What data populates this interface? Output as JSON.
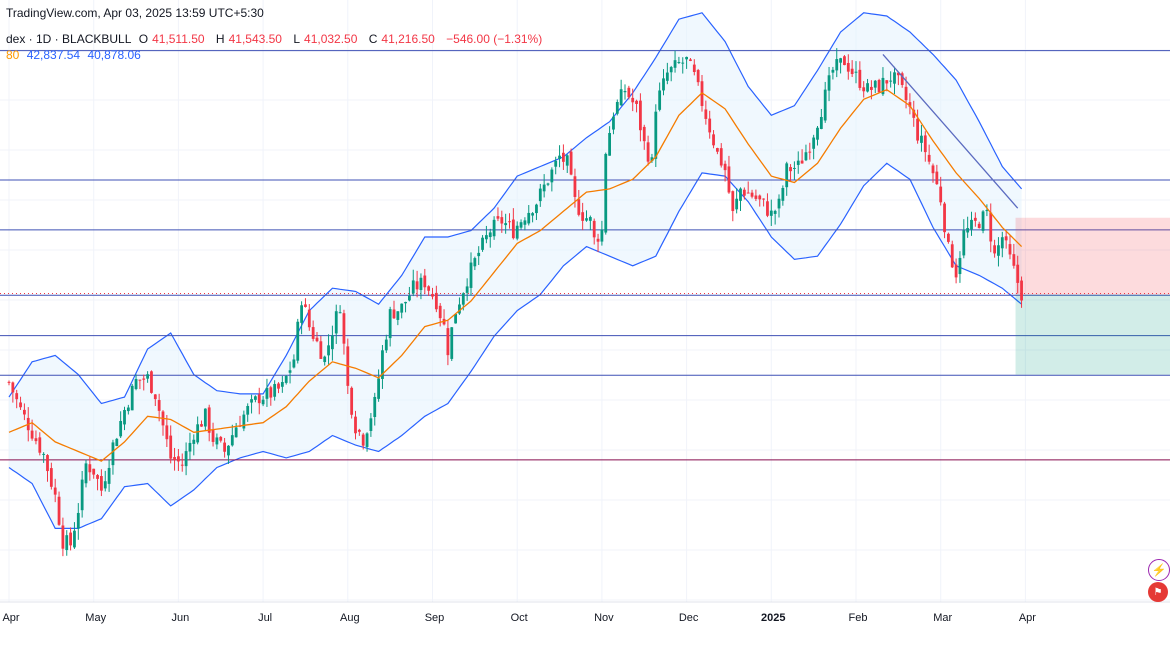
{
  "header": {
    "source": "TradingView.com, Apr 03, 2025 13:59 UTC+5:30",
    "symbol": "dex · 1D · BLACKBULL",
    "open_label": "O",
    "open": "41,511.50",
    "high_label": "H",
    "high": "41,543.50",
    "low_label": "L",
    "low": "41,032.50",
    "close_label": "C",
    "close": "41,216.50",
    "change": "−546.00 (−1.31%)",
    "ma_fragment": "80",
    "bb_upper": "42,837.54",
    "bb_lower": "40,878.06"
  },
  "colors": {
    "up": "#089981",
    "down": "#f23645",
    "ma": "#f57c00",
    "bands": "#2962ff",
    "band_fill": "#e3f2fd",
    "hline": "#3f51b5",
    "support_bottom": "#880e4f",
    "trendline": "#5b6bc0"
  },
  "icons": [
    "lightning-icon",
    "flag-icon"
  ],
  "chart_data": {
    "type": "candlestick",
    "title": "",
    "xlabel": "",
    "ylabel": "",
    "x_tick_labels": [
      "Apr",
      "May",
      "Jun",
      "Jul",
      "Aug",
      "Sep",
      "Oct",
      "Nov",
      "Dec",
      "2025",
      "Feb",
      "Mar",
      "Apr"
    ],
    "x_tick_index": [
      0,
      22,
      44,
      66,
      88,
      110,
      132,
      154,
      176,
      198,
      220,
      242,
      264
    ],
    "ylim": [
      36400,
      45800
    ],
    "grid": true,
    "horizontal_levels": [
      45010,
      42990,
      42210,
      41190,
      40560,
      39940
    ],
    "support_level_bottom": 38620,
    "current_price_level": 41216.5,
    "anchors": [
      [
        0,
        39830
      ],
      [
        3,
        39400
      ],
      [
        6,
        39050
      ],
      [
        9,
        38700
      ],
      [
        12,
        38050
      ],
      [
        14,
        37350
      ],
      [
        16,
        37300
      ],
      [
        18,
        37850
      ],
      [
        20,
        38550
      ],
      [
        22,
        38450
      ],
      [
        24,
        38150
      ],
      [
        27,
        38850
      ],
      [
        30,
        39400
      ],
      [
        33,
        39850
      ],
      [
        36,
        39900
      ],
      [
        38,
        39650
      ],
      [
        40,
        39150
      ],
      [
        42,
        38650
      ],
      [
        45,
        38550
      ],
      [
        48,
        39050
      ],
      [
        51,
        39300
      ],
      [
        53,
        38950
      ],
      [
        56,
        38750
      ],
      [
        59,
        39150
      ],
      [
        62,
        39400
      ],
      [
        65,
        39600
      ],
      [
        68,
        39650
      ],
      [
        71,
        39750
      ],
      [
        74,
        40200
      ],
      [
        76,
        41150
      ],
      [
        78,
        40700
      ],
      [
        80,
        40450
      ],
      [
        82,
        40200
      ],
      [
        84,
        40650
      ],
      [
        86,
        41050
      ],
      [
        88,
        39750
      ],
      [
        90,
        39150
      ],
      [
        92,
        38950
      ],
      [
        95,
        39500
      ],
      [
        97,
        40300
      ],
      [
        99,
        40900
      ],
      [
        102,
        41000
      ],
      [
        105,
        41300
      ],
      [
        108,
        41400
      ],
      [
        111,
        41100
      ],
      [
        113,
        40700
      ],
      [
        114,
        40350
      ],
      [
        116,
        40950
      ],
      [
        119,
        41450
      ],
      [
        122,
        41850
      ],
      [
        125,
        42200
      ],
      [
        128,
        42350
      ],
      [
        131,
        42200
      ],
      [
        134,
        42450
      ],
      [
        137,
        42650
      ],
      [
        140,
        43000
      ],
      [
        143,
        43350
      ],
      [
        145,
        43250
      ],
      [
        147,
        42650
      ],
      [
        149,
        42450
      ],
      [
        151,
        42350
      ],
      [
        152,
        42050
      ],
      [
        154,
        42200
      ],
      [
        155,
        43450
      ],
      [
        157,
        44050
      ],
      [
        160,
        44400
      ],
      [
        163,
        44100
      ],
      [
        165,
        43550
      ],
      [
        167,
        43250
      ],
      [
        168,
        44150
      ],
      [
        171,
        44650
      ],
      [
        174,
        44800
      ],
      [
        176,
        44850
      ],
      [
        178,
        44600
      ],
      [
        181,
        44000
      ],
      [
        184,
        43400
      ],
      [
        186,
        43150
      ],
      [
        188,
        42450
      ],
      [
        190,
        42850
      ],
      [
        193,
        42750
      ],
      [
        196,
        42600
      ],
      [
        198,
        42450
      ],
      [
        200,
        42600
      ],
      [
        202,
        43150
      ],
      [
        205,
        43200
      ],
      [
        208,
        43550
      ],
      [
        211,
        44100
      ],
      [
        214,
        44700
      ],
      [
        217,
        44850
      ],
      [
        220,
        44600
      ],
      [
        223,
        44400
      ],
      [
        226,
        44450
      ],
      [
        229,
        44600
      ],
      [
        231,
        44500
      ],
      [
        234,
        44100
      ],
      [
        236,
        43700
      ],
      [
        238,
        43450
      ],
      [
        240,
        43100
      ],
      [
        242,
        42700
      ],
      [
        244,
        41900
      ],
      [
        246,
        41550
      ],
      [
        248,
        42150
      ],
      [
        250,
        42250
      ],
      [
        252,
        42350
      ],
      [
        254,
        42450
      ],
      [
        256,
        41800
      ],
      [
        258,
        42100
      ],
      [
        260,
        41750
      ],
      [
        263,
        41216
      ]
    ],
    "ma_anchors": [
      [
        0,
        39050
      ],
      [
        6,
        39200
      ],
      [
        12,
        38900
      ],
      [
        18,
        38750
      ],
      [
        24,
        38600
      ],
      [
        30,
        38900
      ],
      [
        36,
        39300
      ],
      [
        42,
        39250
      ],
      [
        48,
        39050
      ],
      [
        54,
        39100
      ],
      [
        60,
        39150
      ],
      [
        66,
        39200
      ],
      [
        72,
        39450
      ],
      [
        78,
        39850
      ],
      [
        84,
        40150
      ],
      [
        90,
        40050
      ],
      [
        96,
        39900
      ],
      [
        102,
        40250
      ],
      [
        108,
        40700
      ],
      [
        114,
        40800
      ],
      [
        120,
        41100
      ],
      [
        126,
        41550
      ],
      [
        132,
        42000
      ],
      [
        138,
        42200
      ],
      [
        144,
        42500
      ],
      [
        150,
        42800
      ],
      [
        156,
        42850
      ],
      [
        162,
        43000
      ],
      [
        168,
        43350
      ],
      [
        174,
        44000
      ],
      [
        180,
        44350
      ],
      [
        186,
        44100
      ],
      [
        192,
        43550
      ],
      [
        198,
        43050
      ],
      [
        204,
        42950
      ],
      [
        210,
        43250
      ],
      [
        216,
        43800
      ],
      [
        222,
        44250
      ],
      [
        228,
        44400
      ],
      [
        234,
        44150
      ],
      [
        240,
        43600
      ],
      [
        246,
        43100
      ],
      [
        252,
        42700
      ],
      [
        258,
        42250
      ],
      [
        263,
        41950
      ]
    ],
    "band_halfwidth_anchors": [
      [
        0,
        550
      ],
      [
        6,
        950
      ],
      [
        12,
        1350
      ],
      [
        18,
        1200
      ],
      [
        24,
        900
      ],
      [
        30,
        700
      ],
      [
        36,
        1050
      ],
      [
        42,
        1350
      ],
      [
        48,
        900
      ],
      [
        54,
        600
      ],
      [
        60,
        500
      ],
      [
        66,
        450
      ],
      [
        72,
        800
      ],
      [
        78,
        1100
      ],
      [
        84,
        1150
      ],
      [
        90,
        1200
      ],
      [
        96,
        1150
      ],
      [
        102,
        1250
      ],
      [
        108,
        1400
      ],
      [
        114,
        1300
      ],
      [
        120,
        1100
      ],
      [
        126,
        1000
      ],
      [
        132,
        1050
      ],
      [
        138,
        1000
      ],
      [
        144,
        850
      ],
      [
        150,
        850
      ],
      [
        156,
        1050
      ],
      [
        162,
        1350
      ],
      [
        168,
        1550
      ],
      [
        174,
        1500
      ],
      [
        180,
        1250
      ],
      [
        186,
        1050
      ],
      [
        192,
        900
      ],
      [
        198,
        950
      ],
      [
        204,
        1200
      ],
      [
        210,
        1450
      ],
      [
        216,
        1500
      ],
      [
        222,
        1350
      ],
      [
        228,
        1150
      ],
      [
        234,
        1150
      ],
      [
        240,
        1350
      ],
      [
        246,
        1450
      ],
      [
        252,
        1200
      ],
      [
        258,
        950
      ],
      [
        263,
        900
      ]
    ],
    "trendline": [
      [
        227,
        44950
      ],
      [
        262,
        42550
      ]
    ],
    "position_box": {
      "start_index": 263,
      "entry": 41200,
      "stop": 42400,
      "target": 39950
    }
  }
}
